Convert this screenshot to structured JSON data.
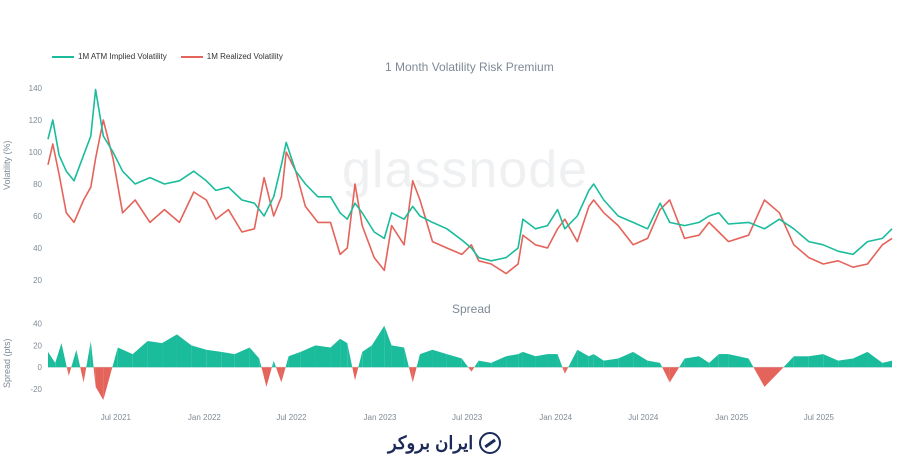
{
  "chart_data": [
    {
      "type": "line",
      "title": "1 Month Volatility Risk Premium",
      "watermark": "glassnode",
      "ylabel": "Volatility (%)",
      "ylim": [
        10,
        145
      ],
      "yticks": [
        20,
        40,
        60,
        80,
        100,
        120,
        140
      ],
      "xlim": [
        "2021-02-10",
        "2025-11-30"
      ],
      "xticks": [
        "Jul 2021",
        "Jan 2022",
        "Jul 2022",
        "Jan 2023",
        "Jul 2023",
        "Jan 2024",
        "Jul 2024",
        "Jan 2025",
        "Jul 2025"
      ],
      "xtick_dates": [
        "2021-07-01",
        "2022-01-01",
        "2022-07-01",
        "2023-01-01",
        "2023-07-01",
        "2024-01-01",
        "2024-07-01",
        "2025-01-01",
        "2025-07-01"
      ],
      "legend_position": "top-left",
      "series": [
        {
          "name": "1M ATM Implied Volatility",
          "color": "#1abc9c",
          "points": [
            [
              "2021-02-10",
              108
            ],
            [
              "2021-02-20",
              120
            ],
            [
              "2021-03-05",
              98
            ],
            [
              "2021-03-20",
              88
            ],
            [
              "2021-04-05",
              82
            ],
            [
              "2021-04-25",
              98
            ],
            [
              "2021-05-10",
              110
            ],
            [
              "2021-05-20",
              139
            ],
            [
              "2021-06-05",
              110
            ],
            [
              "2021-06-25",
              100
            ],
            [
              "2021-07-15",
              88
            ],
            [
              "2021-08-10",
              80
            ],
            [
              "2021-09-10",
              84
            ],
            [
              "2021-10-10",
              80
            ],
            [
              "2021-11-10",
              82
            ],
            [
              "2021-12-10",
              88
            ],
            [
              "2022-01-05",
              82
            ],
            [
              "2022-01-25",
              76
            ],
            [
              "2022-02-20",
              78
            ],
            [
              "2022-03-20",
              70
            ],
            [
              "2022-04-15",
              68
            ],
            [
              "2022-05-05",
              60
            ],
            [
              "2022-05-25",
              72
            ],
            [
              "2022-06-10",
              92
            ],
            [
              "2022-06-20",
              106
            ],
            [
              "2022-07-10",
              88
            ],
            [
              "2022-07-30",
              80
            ],
            [
              "2022-08-25",
              72
            ],
            [
              "2022-09-20",
              72
            ],
            [
              "2022-10-10",
              62
            ],
            [
              "2022-10-25",
              58
            ],
            [
              "2022-11-10",
              68
            ],
            [
              "2022-11-25",
              62
            ],
            [
              "2022-12-20",
              50
            ],
            [
              "2023-01-10",
              46
            ],
            [
              "2023-01-25",
              62
            ],
            [
              "2023-02-20",
              58
            ],
            [
              "2023-03-10",
              66
            ],
            [
              "2023-03-25",
              60
            ],
            [
              "2023-04-20",
              56
            ],
            [
              "2023-05-20",
              52
            ],
            [
              "2023-06-20",
              45
            ],
            [
              "2023-07-10",
              40
            ],
            [
              "2023-07-25",
              34
            ],
            [
              "2023-08-20",
              32
            ],
            [
              "2023-09-20",
              34
            ],
            [
              "2023-10-15",
              40
            ],
            [
              "2023-10-25",
              58
            ],
            [
              "2023-11-20",
              52
            ],
            [
              "2023-12-15",
              54
            ],
            [
              "2024-01-05",
              64
            ],
            [
              "2024-01-20",
              52
            ],
            [
              "2024-02-15",
              60
            ],
            [
              "2024-03-10",
              76
            ],
            [
              "2024-03-20",
              80
            ],
            [
              "2024-04-10",
              70
            ],
            [
              "2024-05-10",
              60
            ],
            [
              "2024-06-10",
              56
            ],
            [
              "2024-07-10",
              52
            ],
            [
              "2024-08-05",
              68
            ],
            [
              "2024-08-25",
              56
            ],
            [
              "2024-09-25",
              54
            ],
            [
              "2024-10-25",
              56
            ],
            [
              "2024-11-15",
              60
            ],
            [
              "2024-12-05",
              62
            ],
            [
              "2024-12-25",
              55
            ],
            [
              "2025-02-05",
              56
            ],
            [
              "2025-03-10",
              52
            ],
            [
              "2025-04-10",
              58
            ],
            [
              "2025-05-10",
              52
            ],
            [
              "2025-06-10",
              44
            ],
            [
              "2025-07-10",
              42
            ],
            [
              "2025-08-10",
              38
            ],
            [
              "2025-09-10",
              36
            ],
            [
              "2025-10-10",
              44
            ],
            [
              "2025-11-10",
              46
            ],
            [
              "2025-11-30",
              52
            ]
          ]
        },
        {
          "name": "1M Realized Volatility",
          "color": "#e4635a",
          "points": [
            [
              "2021-02-10",
              92
            ],
            [
              "2021-02-20",
              105
            ],
            [
              "2021-03-05",
              86
            ],
            [
              "2021-03-20",
              62
            ],
            [
              "2021-04-05",
              56
            ],
            [
              "2021-04-25",
              70
            ],
            [
              "2021-05-10",
              78
            ],
            [
              "2021-05-20",
              96
            ],
            [
              "2021-06-05",
              120
            ],
            [
              "2021-06-25",
              96
            ],
            [
              "2021-07-15",
              62
            ],
            [
              "2021-08-10",
              70
            ],
            [
              "2021-09-10",
              56
            ],
            [
              "2021-10-10",
              64
            ],
            [
              "2021-11-10",
              56
            ],
            [
              "2021-12-10",
              75
            ],
            [
              "2022-01-05",
              70
            ],
            [
              "2022-01-25",
              58
            ],
            [
              "2022-02-20",
              64
            ],
            [
              "2022-03-20",
              50
            ],
            [
              "2022-04-15",
              52
            ],
            [
              "2022-05-05",
              84
            ],
            [
              "2022-05-25",
              60
            ],
            [
              "2022-06-10",
              72
            ],
            [
              "2022-06-20",
              100
            ],
            [
              "2022-07-10",
              88
            ],
            [
              "2022-07-30",
              66
            ],
            [
              "2022-08-25",
              56
            ],
            [
              "2022-09-20",
              56
            ],
            [
              "2022-10-10",
              36
            ],
            [
              "2022-10-25",
              40
            ],
            [
              "2022-11-10",
              80
            ],
            [
              "2022-11-25",
              54
            ],
            [
              "2022-12-20",
              34
            ],
            [
              "2023-01-10",
              26
            ],
            [
              "2023-01-25",
              54
            ],
            [
              "2023-02-20",
              42
            ],
            [
              "2023-03-10",
              82
            ],
            [
              "2023-03-25",
              70
            ],
            [
              "2023-04-20",
              44
            ],
            [
              "2023-05-20",
              40
            ],
            [
              "2023-06-20",
              36
            ],
            [
              "2023-07-10",
              42
            ],
            [
              "2023-07-25",
              32
            ],
            [
              "2023-08-20",
              30
            ],
            [
              "2023-09-20",
              24
            ],
            [
              "2023-10-15",
              30
            ],
            [
              "2023-10-25",
              48
            ],
            [
              "2023-11-20",
              42
            ],
            [
              "2023-12-15",
              40
            ],
            [
              "2024-01-05",
              52
            ],
            [
              "2024-01-20",
              58
            ],
            [
              "2024-02-15",
              44
            ],
            [
              "2024-03-10",
              66
            ],
            [
              "2024-03-20",
              70
            ],
            [
              "2024-04-10",
              62
            ],
            [
              "2024-05-10",
              54
            ],
            [
              "2024-06-10",
              42
            ],
            [
              "2024-07-10",
              46
            ],
            [
              "2024-08-05",
              64
            ],
            [
              "2024-08-25",
              70
            ],
            [
              "2024-09-25",
              46
            ],
            [
              "2024-10-25",
              48
            ],
            [
              "2024-11-15",
              56
            ],
            [
              "2024-12-05",
              50
            ],
            [
              "2024-12-25",
              44
            ],
            [
              "2025-02-05",
              48
            ],
            [
              "2025-03-10",
              70
            ],
            [
              "2025-04-10",
              62
            ],
            [
              "2025-05-10",
              42
            ],
            [
              "2025-06-10",
              34
            ],
            [
              "2025-07-10",
              30
            ],
            [
              "2025-08-10",
              32
            ],
            [
              "2025-09-10",
              28
            ],
            [
              "2025-10-10",
              30
            ],
            [
              "2025-11-10",
              42
            ],
            [
              "2025-11-30",
              46
            ]
          ]
        }
      ]
    },
    {
      "type": "area",
      "title": "Spread",
      "ylabel": "Spread (pts)",
      "ylim": [
        -30,
        45
      ],
      "yticks": [
        -20,
        0,
        20,
        40
      ],
      "positive_color": "#1abc9c",
      "negative_color": "#e4635a",
      "series": [
        {
          "name": "",
          "points": [
            [
              "2021-02-10",
              14
            ],
            [
              "2021-02-25",
              4
            ],
            [
              "2021-03-10",
              22
            ],
            [
              "2021-03-25",
              -8
            ],
            [
              "2021-04-10",
              16
            ],
            [
              "2021-04-25",
              -14
            ],
            [
              "2021-05-10",
              24
            ],
            [
              "2021-05-20",
              -18
            ],
            [
              "2021-06-05",
              -30
            ],
            [
              "2021-06-20",
              -6
            ],
            [
              "2021-07-05",
              18
            ],
            [
              "2021-08-05",
              12
            ],
            [
              "2021-09-05",
              24
            ],
            [
              "2021-10-05",
              22
            ],
            [
              "2021-11-05",
              30
            ],
            [
              "2021-12-05",
              20
            ],
            [
              "2022-01-05",
              16
            ],
            [
              "2022-02-05",
              14
            ],
            [
              "2022-03-05",
              12
            ],
            [
              "2022-04-05",
              18
            ],
            [
              "2022-04-25",
              8
            ],
            [
              "2022-05-10",
              -18
            ],
            [
              "2022-05-25",
              6
            ],
            [
              "2022-06-10",
              -14
            ],
            [
              "2022-06-25",
              10
            ],
            [
              "2022-07-20",
              14
            ],
            [
              "2022-08-20",
              20
            ],
            [
              "2022-09-20",
              18
            ],
            [
              "2022-10-10",
              26
            ],
            [
              "2022-10-25",
              22
            ],
            [
              "2022-11-10",
              -12
            ],
            [
              "2022-11-25",
              14
            ],
            [
              "2022-12-15",
              20
            ],
            [
              "2023-01-10",
              38
            ],
            [
              "2023-01-25",
              20
            ],
            [
              "2023-02-20",
              18
            ],
            [
              "2023-03-10",
              -14
            ],
            [
              "2023-03-25",
              12
            ],
            [
              "2023-04-20",
              16
            ],
            [
              "2023-05-20",
              12
            ],
            [
              "2023-06-20",
              8
            ],
            [
              "2023-07-10",
              -4
            ],
            [
              "2023-07-25",
              6
            ],
            [
              "2023-08-20",
              4
            ],
            [
              "2023-09-20",
              10
            ],
            [
              "2023-10-15",
              12
            ],
            [
              "2023-10-25",
              14
            ],
            [
              "2023-11-20",
              10
            ],
            [
              "2023-12-15",
              12
            ],
            [
              "2024-01-05",
              12
            ],
            [
              "2024-01-20",
              -6
            ],
            [
              "2024-02-15",
              16
            ],
            [
              "2024-03-10",
              10
            ],
            [
              "2024-03-20",
              12
            ],
            [
              "2024-04-10",
              6
            ],
            [
              "2024-05-10",
              8
            ],
            [
              "2024-06-10",
              14
            ],
            [
              "2024-07-10",
              6
            ],
            [
              "2024-08-05",
              4
            ],
            [
              "2024-08-25",
              -14
            ],
            [
              "2024-09-25",
              8
            ],
            [
              "2024-10-25",
              10
            ],
            [
              "2024-11-15",
              4
            ],
            [
              "2024-12-05",
              12
            ],
            [
              "2024-12-25",
              12
            ],
            [
              "2025-02-05",
              8
            ],
            [
              "2025-03-10",
              -18
            ],
            [
              "2025-04-10",
              -4
            ],
            [
              "2025-05-10",
              10
            ],
            [
              "2025-06-10",
              10
            ],
            [
              "2025-07-10",
              12
            ],
            [
              "2025-08-10",
              6
            ],
            [
              "2025-09-10",
              8
            ],
            [
              "2025-10-10",
              14
            ],
            [
              "2025-11-10",
              4
            ],
            [
              "2025-11-30",
              6
            ]
          ]
        }
      ]
    }
  ],
  "logo": {
    "text": "ایران بروکر",
    "icon": "trend-arrow-circle-icon"
  }
}
